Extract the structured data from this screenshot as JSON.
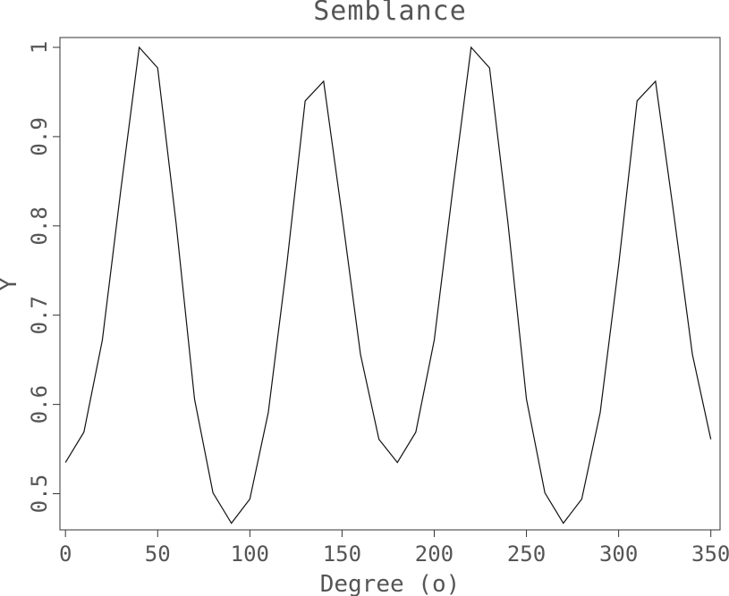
{
  "chart_data": {
    "type": "line",
    "title": "Semblance",
    "xlabel": "Degree (o)",
    "ylabel": "Y",
    "xlim": [
      -3,
      355
    ],
    "ylim": [
      0.4595,
      1.011
    ],
    "x_ticks": [
      0,
      50,
      100,
      150,
      200,
      250,
      300,
      350
    ],
    "y_ticks": [
      0.5,
      0.6,
      0.7,
      0.8,
      0.9,
      1
    ],
    "grid": false,
    "series": [
      {
        "x": [
          0,
          10,
          20,
          30,
          40,
          50,
          60,
          70,
          80,
          90,
          100,
          110,
          120,
          130,
          140,
          150,
          160,
          170,
          180,
          190,
          200,
          210,
          220,
          230,
          240,
          250,
          260,
          270,
          280,
          290,
          300,
          310,
          320,
          330,
          340,
          350
        ],
        "values": [
          0.535,
          0.569,
          0.672,
          0.84,
          1.0,
          0.977,
          0.803,
          0.606,
          0.501,
          0.467,
          0.494,
          0.591,
          0.756,
          0.94,
          0.962,
          0.812,
          0.656,
          0.561,
          0.535,
          0.569,
          0.672,
          0.84,
          1.0,
          0.977,
          0.803,
          0.606,
          0.501,
          0.467,
          0.494,
          0.591,
          0.756,
          0.94,
          0.962,
          0.812,
          0.656,
          0.561
        ]
      }
    ]
  }
}
